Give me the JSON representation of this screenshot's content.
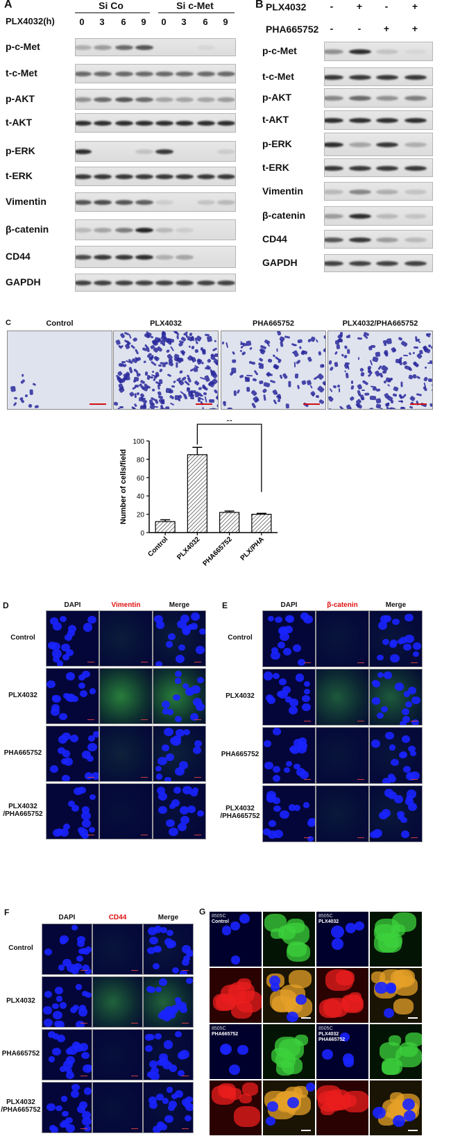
{
  "panelA": {
    "label": "A",
    "group1": "Si Co",
    "group2": "Si c-Met",
    "time_label": "PLX4032(h)",
    "times": [
      "0",
      "3",
      "6",
      "9",
      "0",
      "3",
      "6",
      "9"
    ],
    "rows": [
      "p-c-Met",
      "t-c-Met",
      "p-AKT",
      "t-AKT",
      "p-ERK",
      "t-ERK",
      "Vimentin",
      "β-catenin",
      "CD44",
      "GAPDH"
    ]
  },
  "panelB": {
    "label": "B",
    "treatments": [
      {
        "name": "PLX4032",
        "signs": [
          "-",
          "+",
          "-",
          "+"
        ]
      },
      {
        "name": "PHA665752",
        "signs": [
          "-",
          "-",
          "+",
          "+"
        ]
      }
    ],
    "rows": [
      "p-c-Met",
      "t-c-Met",
      "p-AKT",
      "t-AKT",
      "p-ERK",
      "t-ERK",
      "Vimentin",
      "β-catenin",
      "CD44",
      "GAPDH"
    ]
  },
  "panelC": {
    "label": "C",
    "images": [
      "Control",
      "PLX4032",
      "PHA665752",
      "PLX4032/PHA665752"
    ],
    "significance": "**"
  },
  "chart_data": {
    "type": "bar",
    "categories": [
      "Control",
      "PLX4032",
      "PHA665752",
      "PLX/PHA"
    ],
    "values": [
      12,
      85,
      22,
      20
    ],
    "errors": [
      2,
      8,
      1.5,
      1
    ],
    "ylabel": "Number of cells/field",
    "ylim": [
      0,
      100
    ],
    "yticks": [
      "0",
      "20",
      "40",
      "60",
      "80",
      "100"
    ]
  },
  "panelD": {
    "label": "D",
    "cols": [
      "DAPI",
      "Vimentin",
      "Merge"
    ],
    "rows": [
      "Control",
      "PLX4032",
      "PHA665752",
      "PLX4032\n/PHA665752"
    ]
  },
  "panelE": {
    "label": "E",
    "cols": [
      "DAPI",
      "β-catenin",
      "Merge"
    ],
    "rows": [
      "Control",
      "PLX4032",
      "PHA665752",
      "PLX4032\n/PHA665752"
    ]
  },
  "panelF": {
    "label": "F",
    "cols": [
      "DAPI",
      "CD44",
      "Merge"
    ],
    "rows": [
      "Control",
      "PLX4032",
      "PHA665752",
      "PLX4032\n/PHA665752"
    ]
  },
  "panelG": {
    "label": "G",
    "tiles": [
      {
        "cell": "8505C",
        "cond": "Control"
      },
      {
        "cell": "8505C",
        "cond": "PLX4032"
      },
      {
        "cell": "8505C",
        "cond": "PHA665752"
      },
      {
        "cell": "8505C",
        "cond": "PLX4032\nPHA665752"
      }
    ]
  },
  "colors": {
    "red_label": "#e01010",
    "dapi": "#1a24ff",
    "green": "#36c83a",
    "red": "#e8121a",
    "crystal": "#2c2a9c"
  }
}
